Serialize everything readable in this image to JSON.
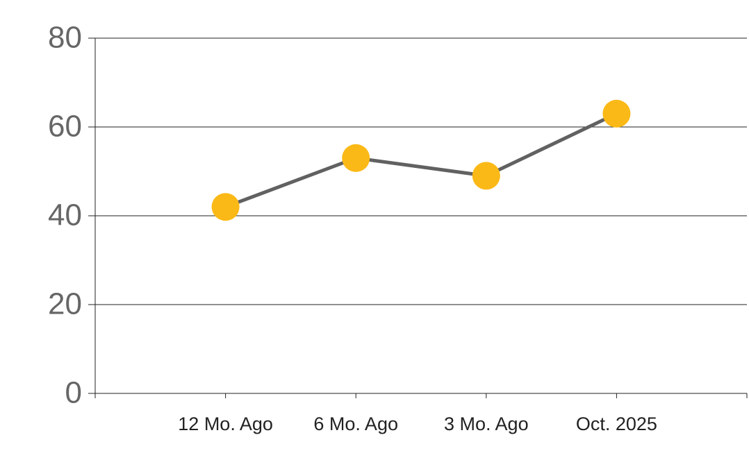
{
  "chart_data": {
    "type": "line",
    "categories": [
      "12 Mo. Ago",
      "6 Mo. Ago",
      "3 Mo. Ago",
      "Oct. 2025"
    ],
    "series": [
      {
        "values": [
          42,
          53,
          49,
          63
        ],
        "color": "#616161",
        "marker_color": "#fbb917"
      }
    ],
    "ylim": [
      0,
      80
    ],
    "yticks": [
      0,
      20,
      40,
      60,
      80
    ],
    "grid": true
  }
}
